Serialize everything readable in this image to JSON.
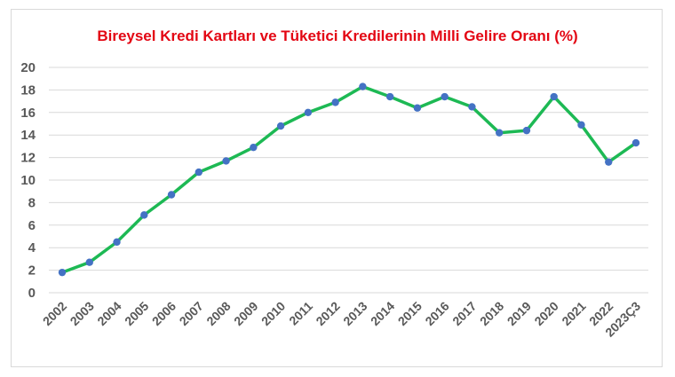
{
  "chart_data": {
    "type": "line",
    "title": "Bireysel Kredi Kartları ve Tüketici Kredilerinin Milli Gelire Oranı (%)",
    "xlabel": "",
    "ylabel": "",
    "categories": [
      "2002",
      "2003",
      "2004",
      "2005",
      "2006",
      "2007",
      "2008",
      "2009",
      "2010",
      "2011",
      "2012",
      "2013",
      "2014",
      "2015",
      "2016",
      "2017",
      "2018",
      "2019",
      "2020",
      "2021",
      "2022",
      "2023Ç3"
    ],
    "series": [
      {
        "values": [
          1.8,
          2.7,
          4.5,
          6.9,
          8.7,
          10.7,
          11.7,
          12.9,
          14.8,
          16.0,
          16.9,
          18.3,
          17.4,
          16.4,
          17.4,
          16.5,
          14.2,
          14.4,
          17.4,
          14.9,
          11.6,
          13.3
        ]
      }
    ],
    "ylim": [
      0,
      20
    ],
    "yticks": [
      "0",
      "2",
      "4",
      "6",
      "8",
      "10",
      "12",
      "14",
      "16",
      "18",
      "20"
    ],
    "grid": true,
    "colors": {
      "line": "#1db954",
      "marker": "#4472c4",
      "grid": "#d9d9d9",
      "title": "#e30613",
      "tick": "#595959"
    }
  }
}
